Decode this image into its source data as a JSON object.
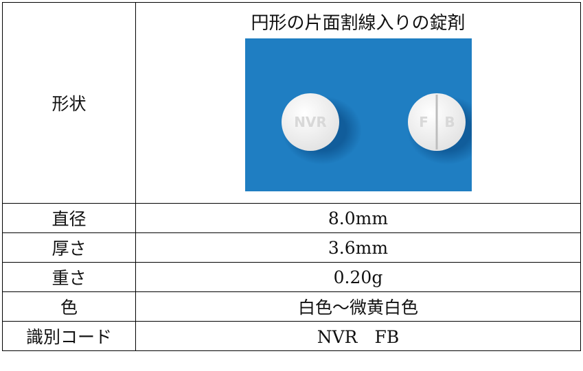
{
  "table": {
    "shape": {
      "label": "形状",
      "description": "円形の片面割線入りの錠剤",
      "image_marks": {
        "left": "NVR",
        "right": [
          "F",
          "B"
        ]
      }
    },
    "rows": [
      [
        "直径",
        "8.0mm"
      ],
      [
        "厚さ",
        "3.6mm"
      ],
      [
        "重さ",
        "0.20g"
      ],
      [
        "色",
        "白色～微黄白色"
      ],
      [
        "識別コード",
        "NVR　FB"
      ]
    ]
  }
}
